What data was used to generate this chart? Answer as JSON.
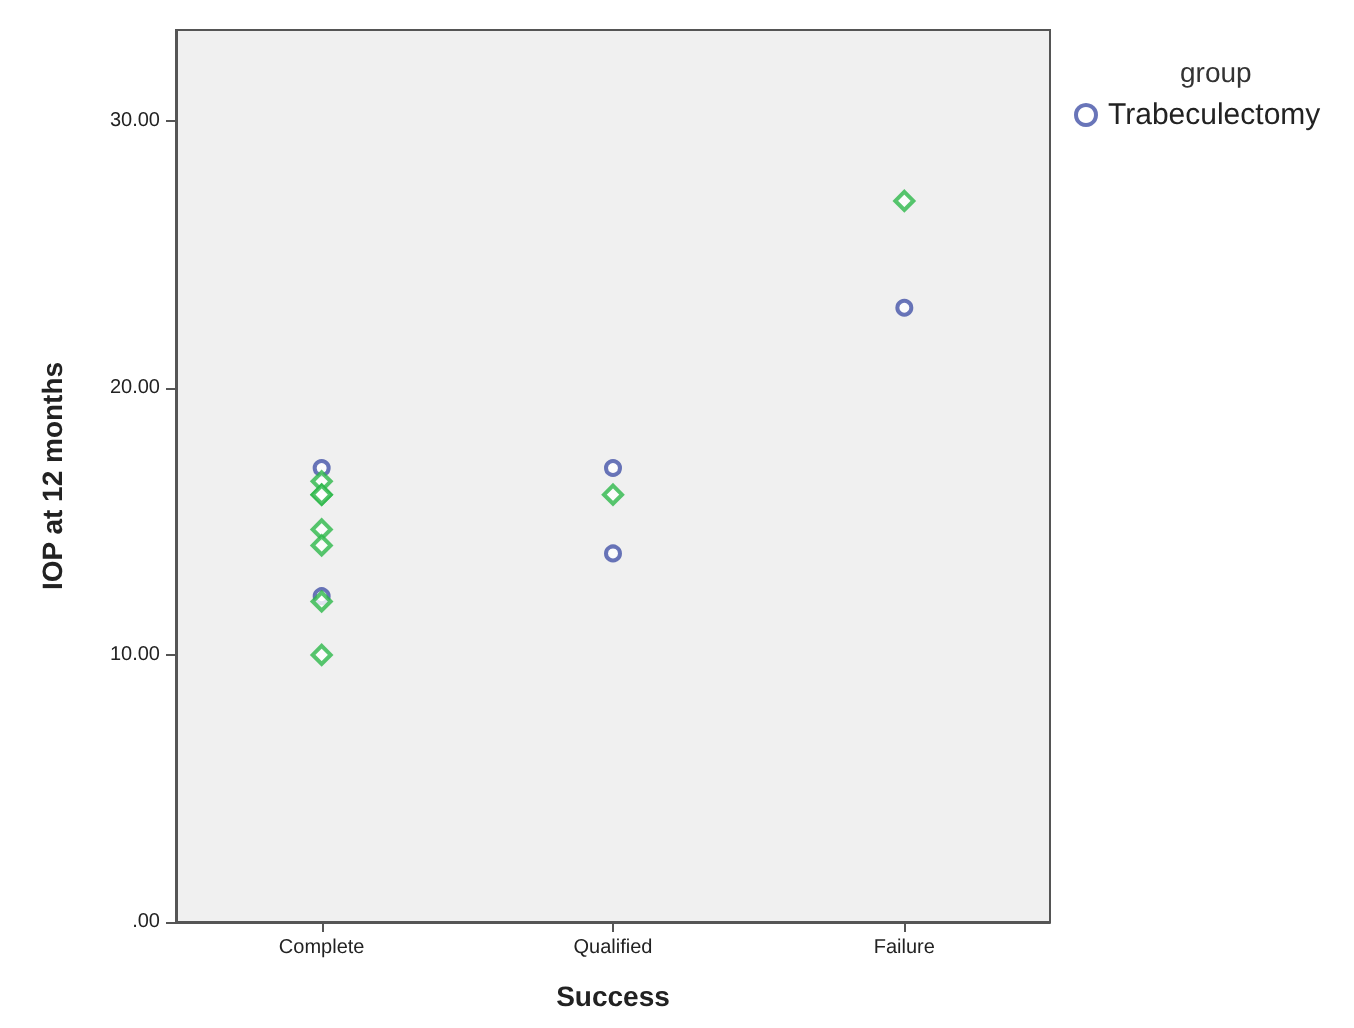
{
  "chart_data": {
    "type": "scatter",
    "xlabel": "Success",
    "ylabel": "IOP at 12 months",
    "legend_title": "group",
    "legend": "top right",
    "grid": false,
    "categories": [
      "Complete",
      "Qualified",
      "Failure"
    ],
    "ylim": [
      0,
      33.4
    ],
    "yticks": [
      {
        "value": 0,
        "label": ".00"
      },
      {
        "value": 10,
        "label": "10.00"
      },
      {
        "value": 20,
        "label": "20.00"
      },
      {
        "value": 30,
        "label": "30.00"
      }
    ],
    "series": [
      {
        "name": "Trabeculectomy",
        "color": "#4453a8",
        "marker": "circle",
        "x": [
          "Complete",
          "Complete",
          "Qualified",
          "Qualified",
          "Failure"
        ],
        "values": [
          17.0,
          12.2,
          17.0,
          13.8,
          23.0
        ]
      },
      {
        "color": "#2db84a",
        "marker": "diamond",
        "x": [
          "Complete",
          "Complete",
          "Complete",
          "Complete",
          "Complete",
          "Complete",
          "Complete",
          "Qualified",
          "Failure"
        ],
        "values": [
          16.5,
          16.0,
          14.7,
          14.1,
          12.0,
          10.0,
          16.0,
          16.0,
          27.0
        ]
      }
    ]
  }
}
